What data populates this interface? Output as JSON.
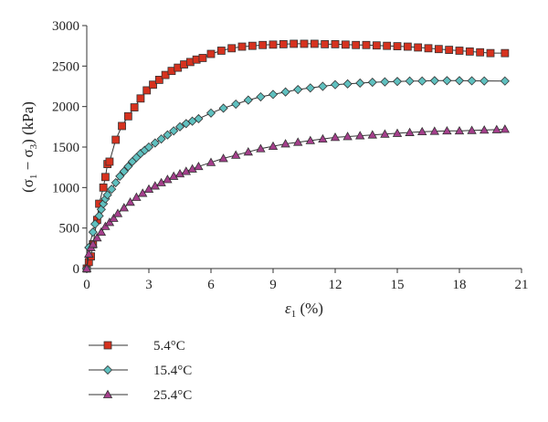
{
  "chart_data": {
    "type": "line",
    "xlabel_symbol": "ε",
    "xlabel_sub": "1",
    "xlabel_unit": " (%)",
    "ylabel_parts": [
      "(σ",
      "1",
      " − σ",
      "3",
      ") (kPa)"
    ],
    "xlim": [
      0,
      21
    ],
    "ylim": [
      0,
      3000
    ],
    "x_ticks": [
      "0",
      "3",
      "6",
      "9",
      "12",
      "15",
      "18",
      "21"
    ],
    "y_ticks": [
      "0",
      "500",
      "1000",
      "1500",
      "2000",
      "2500",
      "3000"
    ],
    "grid": false,
    "legend_position": "bottom-left",
    "series": [
      {
        "name": "5.4°C",
        "marker": "square",
        "color": "#d6321f",
        "points": [
          [
            0,
            0
          ],
          [
            0.1,
            80
          ],
          [
            0.2,
            150
          ],
          [
            0.3,
            300
          ],
          [
            0.5,
            600
          ],
          [
            0.6,
            800
          ],
          [
            0.8,
            1000
          ],
          [
            0.9,
            1130
          ],
          [
            1.0,
            1290
          ],
          [
            1.1,
            1320
          ],
          [
            1.4,
            1590
          ],
          [
            1.7,
            1760
          ],
          [
            2.0,
            1880
          ],
          [
            2.3,
            1990
          ],
          [
            2.6,
            2100
          ],
          [
            2.9,
            2200
          ],
          [
            3.2,
            2270
          ],
          [
            3.5,
            2330
          ],
          [
            3.8,
            2390
          ],
          [
            4.1,
            2440
          ],
          [
            4.4,
            2480
          ],
          [
            4.7,
            2520
          ],
          [
            5.0,
            2550
          ],
          [
            5.3,
            2580
          ],
          [
            5.6,
            2600
          ],
          [
            6.0,
            2650
          ],
          [
            6.5,
            2690
          ],
          [
            7.0,
            2720
          ],
          [
            7.5,
            2740
          ],
          [
            8.0,
            2750
          ],
          [
            8.5,
            2760
          ],
          [
            9.0,
            2765
          ],
          [
            9.5,
            2770
          ],
          [
            10.0,
            2775
          ],
          [
            10.5,
            2775
          ],
          [
            11.0,
            2775
          ],
          [
            11.5,
            2770
          ],
          [
            12.0,
            2770
          ],
          [
            12.5,
            2765
          ],
          [
            13.0,
            2760
          ],
          [
            13.5,
            2760
          ],
          [
            14.0,
            2755
          ],
          [
            14.5,
            2750
          ],
          [
            15.0,
            2745
          ],
          [
            15.5,
            2740
          ],
          [
            16.0,
            2730
          ],
          [
            16.5,
            2720
          ],
          [
            17.0,
            2710
          ],
          [
            17.5,
            2700
          ],
          [
            18.0,
            2690
          ],
          [
            18.5,
            2680
          ],
          [
            19.0,
            2670
          ],
          [
            19.5,
            2660
          ],
          [
            20.2,
            2660
          ]
        ]
      },
      {
        "name": "15.4°C",
        "marker": "diamond",
        "color": "#5fc0bf",
        "points": [
          [
            0,
            0
          ],
          [
            0.1,
            260
          ],
          [
            0.3,
            450
          ],
          [
            0.4,
            550
          ],
          [
            0.6,
            650
          ],
          [
            0.7,
            730
          ],
          [
            0.8,
            800
          ],
          [
            0.9,
            860
          ],
          [
            1.0,
            910
          ],
          [
            1.2,
            980
          ],
          [
            1.4,
            1060
          ],
          [
            1.6,
            1140
          ],
          [
            1.8,
            1200
          ],
          [
            2.0,
            1260
          ],
          [
            2.2,
            1320
          ],
          [
            2.4,
            1370
          ],
          [
            2.6,
            1420
          ],
          [
            2.8,
            1460
          ],
          [
            3.0,
            1500
          ],
          [
            3.3,
            1550
          ],
          [
            3.6,
            1600
          ],
          [
            3.9,
            1650
          ],
          [
            4.2,
            1700
          ],
          [
            4.5,
            1750
          ],
          [
            4.8,
            1790
          ],
          [
            5.1,
            1820
          ],
          [
            5.4,
            1850
          ],
          [
            6.0,
            1920
          ],
          [
            6.6,
            1980
          ],
          [
            7.2,
            2030
          ],
          [
            7.8,
            2080
          ],
          [
            8.4,
            2120
          ],
          [
            9.0,
            2150
          ],
          [
            9.6,
            2180
          ],
          [
            10.2,
            2210
          ],
          [
            10.8,
            2230
          ],
          [
            11.4,
            2250
          ],
          [
            12.0,
            2270
          ],
          [
            12.6,
            2280
          ],
          [
            13.2,
            2290
          ],
          [
            13.8,
            2300
          ],
          [
            14.4,
            2305
          ],
          [
            15.0,
            2310
          ],
          [
            15.6,
            2315
          ],
          [
            16.2,
            2315
          ],
          [
            16.8,
            2320
          ],
          [
            17.4,
            2320
          ],
          [
            18.0,
            2320
          ],
          [
            18.6,
            2318
          ],
          [
            19.2,
            2316
          ],
          [
            20.2,
            2315
          ]
        ]
      },
      {
        "name": "25.4°C",
        "marker": "triangle",
        "color": "#a53f8c",
        "points": [
          [
            0,
            0
          ],
          [
            0.1,
            180
          ],
          [
            0.2,
            260
          ],
          [
            0.3,
            300
          ],
          [
            0.5,
            380
          ],
          [
            0.7,
            450
          ],
          [
            0.9,
            520
          ],
          [
            1.1,
            570
          ],
          [
            1.3,
            620
          ],
          [
            1.5,
            680
          ],
          [
            1.8,
            750
          ],
          [
            2.1,
            820
          ],
          [
            2.4,
            880
          ],
          [
            2.7,
            930
          ],
          [
            3.0,
            980
          ],
          [
            3.3,
            1020
          ],
          [
            3.6,
            1060
          ],
          [
            3.9,
            1100
          ],
          [
            4.2,
            1140
          ],
          [
            4.5,
            1170
          ],
          [
            4.8,
            1200
          ],
          [
            5.1,
            1230
          ],
          [
            5.4,
            1260
          ],
          [
            6.0,
            1310
          ],
          [
            6.6,
            1360
          ],
          [
            7.2,
            1400
          ],
          [
            7.8,
            1440
          ],
          [
            8.4,
            1480
          ],
          [
            9.0,
            1510
          ],
          [
            9.6,
            1540
          ],
          [
            10.2,
            1560
          ],
          [
            10.8,
            1580
          ],
          [
            11.4,
            1600
          ],
          [
            12.0,
            1620
          ],
          [
            12.6,
            1630
          ],
          [
            13.2,
            1640
          ],
          [
            13.8,
            1650
          ],
          [
            14.4,
            1660
          ],
          [
            15.0,
            1670
          ],
          [
            15.6,
            1680
          ],
          [
            16.2,
            1690
          ],
          [
            16.8,
            1695
          ],
          [
            17.4,
            1700
          ],
          [
            18.0,
            1700
          ],
          [
            18.6,
            1705
          ],
          [
            19.2,
            1710
          ],
          [
            19.8,
            1715
          ],
          [
            20.2,
            1720
          ]
        ]
      }
    ]
  }
}
